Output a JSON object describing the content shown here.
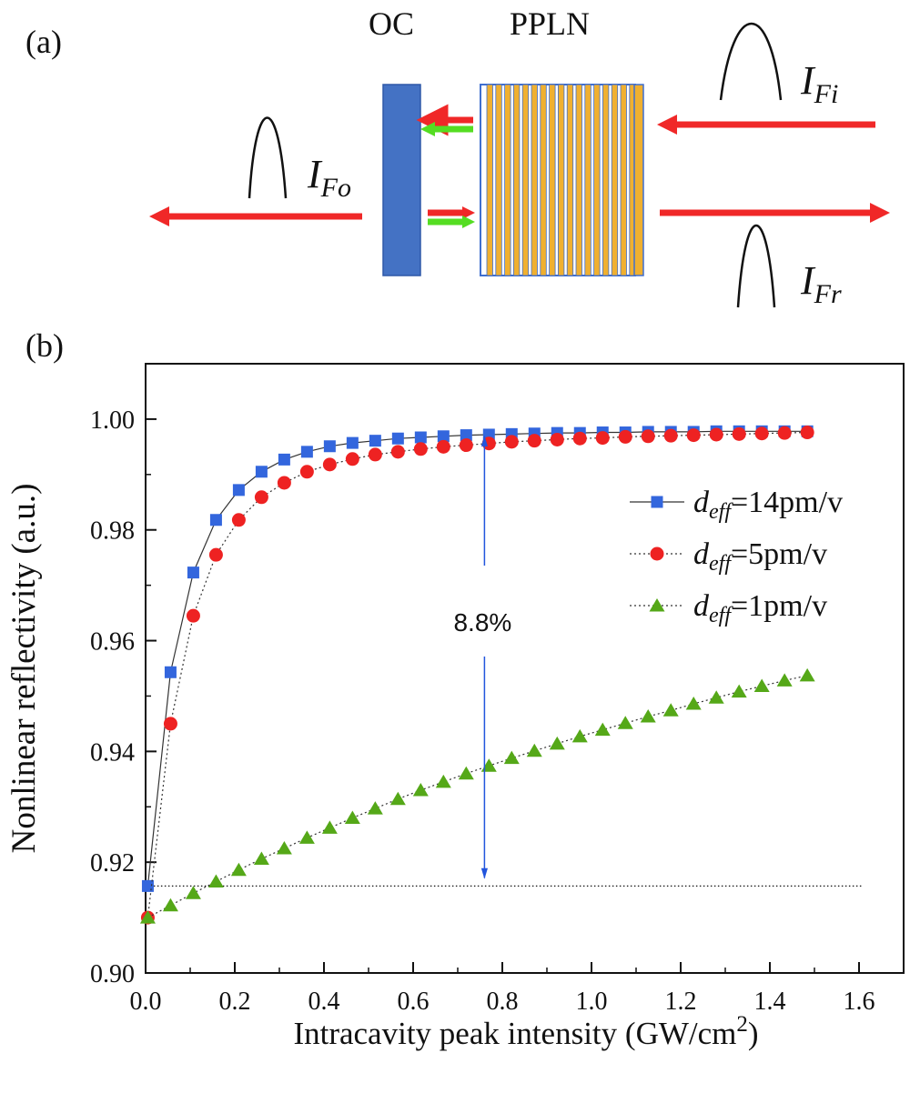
{
  "panel_a": {
    "label": "(a)",
    "oc_label": "OC",
    "ppln_label": "PPLN",
    "beam_input": {
      "base": "I",
      "sub": "Fi"
    },
    "beam_output": {
      "base": "I",
      "sub": "Fo"
    },
    "beam_reflected": {
      "base": "I",
      "sub": "Fr"
    },
    "colors": {
      "oc_block": "#4472C4",
      "ppln_stripe": "#F0B030",
      "ppln_frame": "#3F6FD0",
      "fundamental_arrow": "#F02828",
      "harmonic_arrow": "#55DD22"
    }
  },
  "panel_b": {
    "label": "(b)",
    "annotation": "8.8%",
    "legend": [
      {
        "prefix": "d",
        "sub": "eff",
        "suffix": "=14pm/v"
      },
      {
        "prefix": "d",
        "sub": "eff",
        "suffix": "=5pm/v"
      },
      {
        "prefix": "d",
        "sub": "eff",
        "suffix": "=1pm/v"
      }
    ]
  },
  "chart_data": {
    "type": "line",
    "xlabel": "Intracavity peak intensity (GW/cm",
    "xlabel_sup": "2",
    "xlabel_end": ")",
    "ylabel": "Nonlinear reflectivity (a.u.)",
    "xlim": [
      0.0,
      1.7
    ],
    "ylim": [
      0.9,
      1.01
    ],
    "xticks": [
      0.0,
      0.2,
      0.4,
      0.6,
      0.8,
      1.0,
      1.2,
      1.4,
      1.6
    ],
    "xtick_labels": [
      "0.0",
      "0.2",
      "0.4",
      "0.6",
      "0.8",
      "1.0",
      "1.2",
      "1.4",
      "1.6"
    ],
    "yticks": [
      0.9,
      0.92,
      0.94,
      0.96,
      0.98,
      1.0
    ],
    "ytick_labels": [
      "0.90",
      "0.92",
      "0.94",
      "0.96",
      "0.98",
      "1.00"
    ],
    "legend_position": "right",
    "grid": false,
    "reference_line_y": 0.9157,
    "arrow_x": 0.76,
    "arrow_from_y": 0.9975,
    "arrow_to_y": 0.9165,
    "series": [
      {
        "name": "deff=14pm/v",
        "color": "#3366DD",
        "marker": "square",
        "x": [
          0.005,
          0.056,
          0.107,
          0.158,
          0.209,
          0.26,
          0.311,
          0.362,
          0.413,
          0.464,
          0.515,
          0.566,
          0.617,
          0.668,
          0.719,
          0.77,
          0.821,
          0.872,
          0.923,
          0.974,
          1.025,
          1.076,
          1.127,
          1.178,
          1.229,
          1.28,
          1.331,
          1.382,
          1.433,
          1.484
        ],
        "y": [
          0.9157,
          0.9543,
          0.9723,
          0.9818,
          0.9872,
          0.9905,
          0.9927,
          0.9941,
          0.9951,
          0.9957,
          0.9961,
          0.9965,
          0.9967,
          0.9969,
          0.9971,
          0.9972,
          0.9973,
          0.9974,
          0.9975,
          0.9975,
          0.9976,
          0.9976,
          0.9977,
          0.9977,
          0.9977,
          0.9978,
          0.9978,
          0.9978,
          0.9978,
          0.9978
        ]
      },
      {
        "name": "deff=5pm/v",
        "color": "#EE2222",
        "marker": "circle",
        "x": [
          0.005,
          0.056,
          0.107,
          0.158,
          0.209,
          0.26,
          0.311,
          0.362,
          0.413,
          0.464,
          0.515,
          0.566,
          0.617,
          0.668,
          0.719,
          0.77,
          0.821,
          0.872,
          0.923,
          0.974,
          1.025,
          1.076,
          1.127,
          1.178,
          1.229,
          1.28,
          1.331,
          1.382,
          1.433,
          1.484
        ],
        "y": [
          0.91,
          0.945,
          0.9645,
          0.9755,
          0.9818,
          0.9859,
          0.9885,
          0.9905,
          0.9918,
          0.9928,
          0.9936,
          0.9941,
          0.9946,
          0.995,
          0.9953,
          0.9956,
          0.9959,
          0.9961,
          0.9963,
          0.9965,
          0.9966,
          0.9968,
          0.9969,
          0.997,
          0.9971,
          0.9972,
          0.9973,
          0.9974,
          0.9975,
          0.9976
        ]
      },
      {
        "name": "deff=1pm/v",
        "color": "#55A818",
        "marker": "triangle",
        "x": [
          0.005,
          0.056,
          0.107,
          0.158,
          0.209,
          0.26,
          0.311,
          0.362,
          0.413,
          0.464,
          0.515,
          0.566,
          0.617,
          0.668,
          0.719,
          0.77,
          0.821,
          0.872,
          0.923,
          0.974,
          1.025,
          1.076,
          1.127,
          1.178,
          1.229,
          1.28,
          1.331,
          1.382,
          1.433,
          1.484
        ],
        "y": [
          0.91,
          0.9122,
          0.9144,
          0.9165,
          0.9186,
          0.9206,
          0.9225,
          0.9244,
          0.9262,
          0.928,
          0.9297,
          0.9314,
          0.933,
          0.9345,
          0.936,
          0.9374,
          0.9388,
          0.9401,
          0.9414,
          0.9427,
          0.9439,
          0.9451,
          0.9463,
          0.9474,
          0.9486,
          0.9497,
          0.9508,
          0.9518,
          0.9528,
          0.9537
        ]
      }
    ]
  }
}
